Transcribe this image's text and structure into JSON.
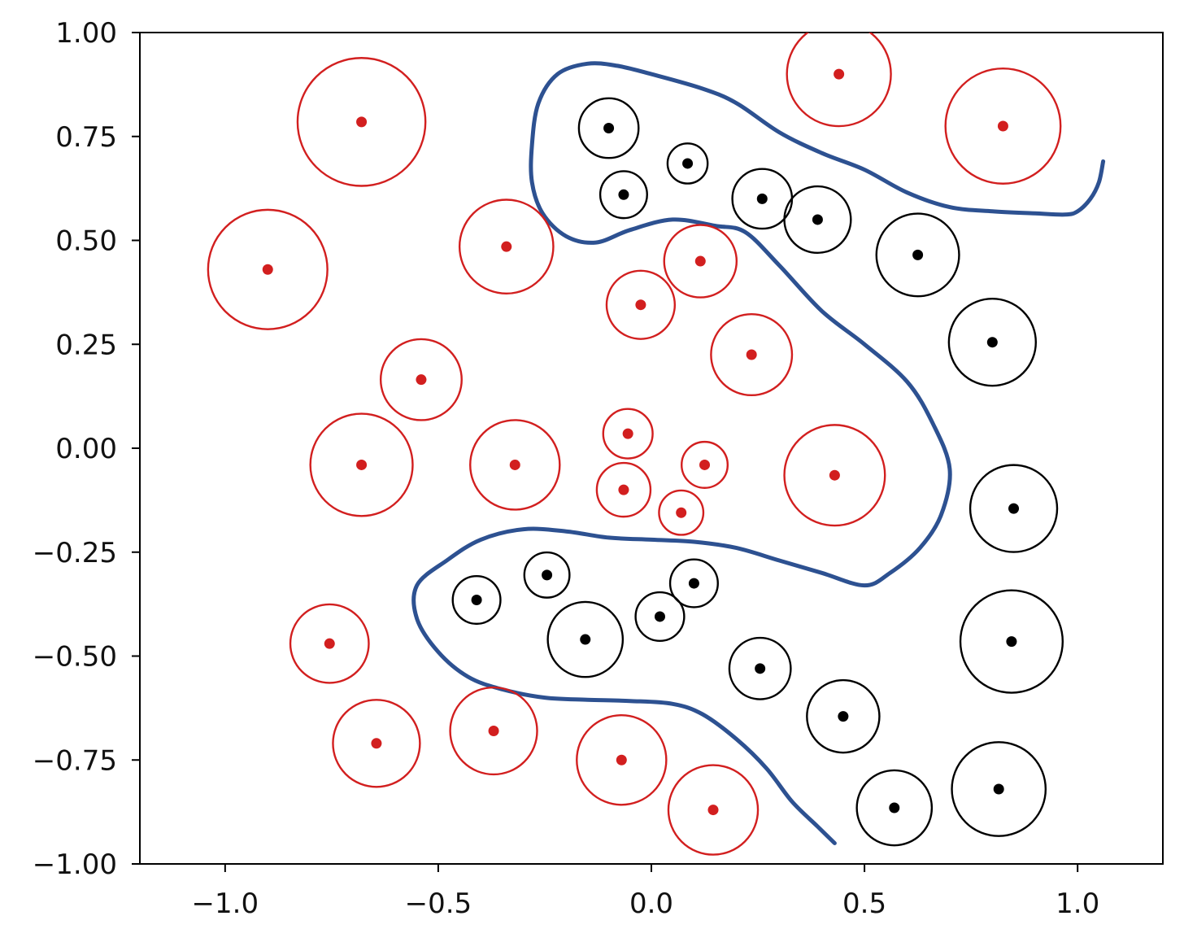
{
  "chart_data": {
    "type": "scatter",
    "title": "",
    "xlabel": "",
    "ylabel": "",
    "xlim": [
      -1.2,
      1.2
    ],
    "ylim": [
      -1.0,
      1.0
    ],
    "xticks": [
      -1.0,
      -0.5,
      0.0,
      0.5,
      1.0
    ],
    "xtick_labels": [
      "−1.0",
      "−0.5",
      "0.0",
      "0.5",
      "1.0"
    ],
    "yticks": [
      1.0,
      0.75,
      0.5,
      0.25,
      0.0,
      -0.25,
      -0.5,
      -0.75,
      -1.0
    ],
    "ytick_labels": [
      "1.00",
      "0.75",
      "0.50",
      "0.25",
      "0.00",
      "−0.25",
      "−0.50",
      "−0.75",
      "−1.00"
    ],
    "grid": false,
    "colors": {
      "red": "#d21f1f",
      "black": "#000000",
      "boundary": "#2d5191"
    },
    "series": [
      {
        "color": "#d21f1f",
        "points": [
          {
            "x": -0.68,
            "y": 0.785,
            "r": 0.15
          },
          {
            "x": -0.9,
            "y": 0.43,
            "r": 0.14
          },
          {
            "x": -0.34,
            "y": 0.485,
            "r": 0.11
          },
          {
            "x": -0.54,
            "y": 0.165,
            "r": 0.095
          },
          {
            "x": -0.68,
            "y": -0.04,
            "r": 0.12
          },
          {
            "x": -0.32,
            "y": -0.04,
            "r": 0.105
          },
          {
            "x": -0.755,
            "y": -0.47,
            "r": 0.092
          },
          {
            "x": -0.645,
            "y": -0.71,
            "r": 0.102
          },
          {
            "x": -0.37,
            "y": -0.68,
            "r": 0.102
          },
          {
            "x": -0.07,
            "y": -0.75,
            "r": 0.105
          },
          {
            "x": 0.145,
            "y": -0.87,
            "r": 0.105
          },
          {
            "x": 0.44,
            "y": 0.9,
            "r": 0.122
          },
          {
            "x": 0.825,
            "y": 0.775,
            "r": 0.135
          },
          {
            "x": -0.025,
            "y": 0.345,
            "r": 0.08
          },
          {
            "x": 0.115,
            "y": 0.45,
            "r": 0.085
          },
          {
            "x": 0.235,
            "y": 0.225,
            "r": 0.095
          },
          {
            "x": -0.055,
            "y": 0.035,
            "r": 0.058
          },
          {
            "x": -0.065,
            "y": -0.1,
            "r": 0.063
          },
          {
            "x": 0.125,
            "y": -0.04,
            "r": 0.054
          },
          {
            "x": 0.07,
            "y": -0.155,
            "r": 0.052
          },
          {
            "x": 0.43,
            "y": -0.065,
            "r": 0.118
          }
        ]
      },
      {
        "color": "#000000",
        "points": [
          {
            "x": -0.1,
            "y": 0.77,
            "r": 0.07
          },
          {
            "x": 0.085,
            "y": 0.685,
            "r": 0.047
          },
          {
            "x": -0.065,
            "y": 0.61,
            "r": 0.055
          },
          {
            "x": 0.26,
            "y": 0.6,
            "r": 0.07
          },
          {
            "x": 0.39,
            "y": 0.55,
            "r": 0.078
          },
          {
            "x": 0.625,
            "y": 0.465,
            "r": 0.097
          },
          {
            "x": 0.8,
            "y": 0.255,
            "r": 0.102
          },
          {
            "x": 0.85,
            "y": -0.145,
            "r": 0.102
          },
          {
            "x": 0.845,
            "y": -0.465,
            "r": 0.12
          },
          {
            "x": -0.41,
            "y": -0.365,
            "r": 0.056
          },
          {
            "x": -0.245,
            "y": -0.305,
            "r": 0.053
          },
          {
            "x": 0.1,
            "y": -0.325,
            "r": 0.056
          },
          {
            "x": 0.02,
            "y": -0.405,
            "r": 0.057
          },
          {
            "x": -0.155,
            "y": -0.46,
            "r": 0.088
          },
          {
            "x": 0.255,
            "y": -0.53,
            "r": 0.072
          },
          {
            "x": 0.45,
            "y": -0.645,
            "r": 0.085
          },
          {
            "x": 0.57,
            "y": -0.865,
            "r": 0.088
          },
          {
            "x": 0.815,
            "y": -0.82,
            "r": 0.11
          }
        ]
      }
    ],
    "boundary": [
      [
        1.06,
        0.69
      ],
      [
        1.05,
        0.64
      ],
      [
        1.03,
        0.6
      ],
      [
        1.0,
        0.57
      ],
      [
        0.97,
        0.562
      ],
      [
        0.9,
        0.565
      ],
      [
        0.8,
        0.57
      ],
      [
        0.7,
        0.58
      ],
      [
        0.6,
        0.615
      ],
      [
        0.5,
        0.67
      ],
      [
        0.4,
        0.71
      ],
      [
        0.3,
        0.76
      ],
      [
        0.2,
        0.83
      ],
      [
        0.12,
        0.865
      ],
      [
        0.0,
        0.9
      ],
      [
        -0.08,
        0.92
      ],
      [
        -0.15,
        0.925
      ],
      [
        -0.22,
        0.9
      ],
      [
        -0.265,
        0.83
      ],
      [
        -0.28,
        0.73
      ],
      [
        -0.28,
        0.64
      ],
      [
        -0.255,
        0.565
      ],
      [
        -0.2,
        0.51
      ],
      [
        -0.13,
        0.495
      ],
      [
        -0.05,
        0.525
      ],
      [
        0.05,
        0.55
      ],
      [
        0.15,
        0.535
      ],
      [
        0.22,
        0.52
      ],
      [
        0.3,
        0.44
      ],
      [
        0.4,
        0.33
      ],
      [
        0.5,
        0.25
      ],
      [
        0.6,
        0.16
      ],
      [
        0.66,
        0.06
      ],
      [
        0.7,
        -0.05
      ],
      [
        0.68,
        -0.16
      ],
      [
        0.63,
        -0.24
      ],
      [
        0.56,
        -0.3
      ],
      [
        0.5,
        -0.33
      ],
      [
        0.4,
        -0.3
      ],
      [
        0.3,
        -0.27
      ],
      [
        0.2,
        -0.24
      ],
      [
        0.1,
        -0.225
      ],
      [
        0.0,
        -0.22
      ],
      [
        -0.1,
        -0.215
      ],
      [
        -0.2,
        -0.2
      ],
      [
        -0.3,
        -0.195
      ],
      [
        -0.4,
        -0.22
      ],
      [
        -0.48,
        -0.27
      ],
      [
        -0.55,
        -0.33
      ],
      [
        -0.55,
        -0.41
      ],
      [
        -0.5,
        -0.49
      ],
      [
        -0.43,
        -0.55
      ],
      [
        -0.35,
        -0.58
      ],
      [
        -0.25,
        -0.6
      ],
      [
        -0.15,
        -0.605
      ],
      [
        -0.05,
        -0.608
      ],
      [
        0.05,
        -0.615
      ],
      [
        0.12,
        -0.64
      ],
      [
        0.2,
        -0.7
      ],
      [
        0.27,
        -0.77
      ],
      [
        0.33,
        -0.85
      ],
      [
        0.39,
        -0.91
      ],
      [
        0.43,
        -0.95
      ]
    ]
  }
}
